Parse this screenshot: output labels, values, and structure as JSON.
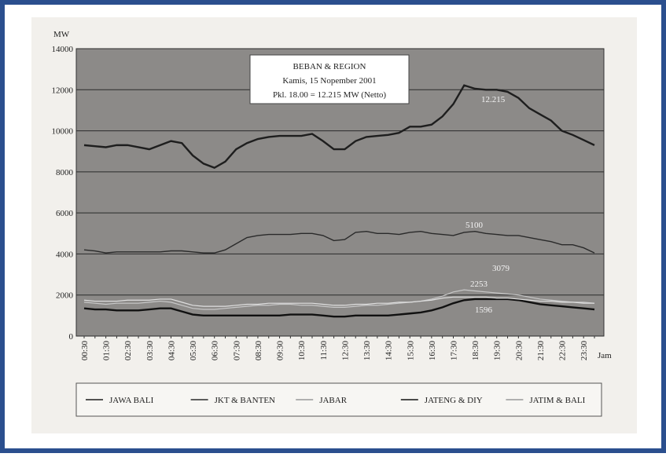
{
  "chart_data": {
    "type": "line",
    "title": "BEBAN & REGION",
    "subtitle": "Kamis, 15 Nopember 2001",
    "note": "Pkl. 18.00 = 12.215 MW (Netto)",
    "y_label": "MW",
    "x_label": "Jam",
    "categories": [
      "00:30",
      null,
      "01:30",
      null,
      "02:30",
      null,
      "03:30",
      null,
      "04:30",
      null,
      "05:30",
      null,
      "06:30",
      null,
      "07:30",
      null,
      "08:30",
      null,
      "09:30",
      null,
      "10:30",
      null,
      "11:30",
      null,
      "12:30",
      null,
      "13:30",
      null,
      "14:30",
      null,
      "15:30",
      null,
      "16:30",
      null,
      "17:30",
      null,
      "18:30",
      null,
      "19:30",
      null,
      "20:30",
      null,
      "21:30",
      null,
      "22:30",
      null,
      "23:30",
      null
    ],
    "series": [
      {
        "name": "JAWA BALI",
        "color": "#1e1e1e",
        "values": [
          9300,
          9250,
          9200,
          9300,
          9300,
          9200,
          9100,
          9300,
          9500,
          9400,
          8800,
          8400,
          8200,
          8500,
          9100,
          9400,
          9600,
          9700,
          9750,
          9750,
          9750,
          9850,
          9500,
          9100,
          9100,
          9500,
          9700,
          9750,
          9800,
          9900,
          10200,
          10200,
          10300,
          10700,
          11300,
          12215,
          12050,
          12000,
          12000,
          11900,
          11600,
          11100,
          10800,
          10500,
          10000,
          9800,
          9550,
          9300
        ]
      },
      {
        "name": "JKT & BANTEN",
        "color": "#2a2a2a",
        "values": [
          4200,
          4150,
          4050,
          4100,
          4100,
          4100,
          4100,
          4100,
          4150,
          4150,
          4100,
          4050,
          4050,
          4200,
          4500,
          4800,
          4900,
          4950,
          4950,
          4950,
          5000,
          5000,
          4900,
          4650,
          4700,
          5050,
          5100,
          5000,
          5000,
          4950,
          5050,
          5100,
          5000,
          4950,
          4900,
          5050,
          5100,
          5000,
          4950,
          4900,
          4900,
          4800,
          4700,
          4600,
          4450,
          4450,
          4300,
          4050
        ]
      },
      {
        "name": "JABAR",
        "color": "#c8c8c8",
        "values": [
          1650,
          1600,
          1550,
          1600,
          1600,
          1600,
          1650,
          1700,
          1650,
          1500,
          1350,
          1300,
          1300,
          1350,
          1400,
          1450,
          1500,
          1500,
          1550,
          1550,
          1500,
          1500,
          1450,
          1400,
          1400,
          1450,
          1500,
          1500,
          1550,
          1600,
          1650,
          1700,
          1800,
          1950,
          2150,
          2253,
          2200,
          2150,
          2100,
          2050,
          2000,
          1900,
          1800,
          1750,
          1700,
          1650,
          1650,
          1600
        ]
      },
      {
        "name": "JATENG & DIY",
        "color": "#111111",
        "values": [
          1350,
          1300,
          1300,
          1250,
          1250,
          1250,
          1300,
          1350,
          1350,
          1200,
          1050,
          1000,
          1000,
          1000,
          1000,
          1000,
          1000,
          1000,
          1000,
          1050,
          1050,
          1050,
          1000,
          950,
          950,
          1000,
          1000,
          1000,
          1000,
          1050,
          1100,
          1150,
          1250,
          1400,
          1600,
          1750,
          1800,
          1800,
          1800,
          1800,
          1750,
          1650,
          1550,
          1500,
          1450,
          1400,
          1350,
          1300
        ]
      },
      {
        "name": "JATIM & BALI",
        "color": "#e0e0e0",
        "values": [
          1750,
          1700,
          1700,
          1700,
          1750,
          1750,
          1750,
          1800,
          1800,
          1650,
          1500,
          1450,
          1450,
          1450,
          1500,
          1550,
          1550,
          1600,
          1600,
          1600,
          1600,
          1600,
          1550,
          1500,
          1500,
          1550,
          1550,
          1600,
          1600,
          1650,
          1650,
          1700,
          1750,
          1850,
          1900,
          1900,
          1900,
          1900,
          1850,
          1850,
          1800,
          1750,
          1700,
          1700,
          1650,
          1650,
          1600,
          1600
        ]
      }
    ],
    "annotations": [
      "12.215",
      "5100",
      "3079",
      "2253",
      "1596"
    ],
    "ylim": [
      0,
      14000
    ],
    "yticks": [
      0,
      2000,
      4000,
      6000,
      8000,
      10000,
      12000,
      14000
    ],
    "grid": true
  }
}
